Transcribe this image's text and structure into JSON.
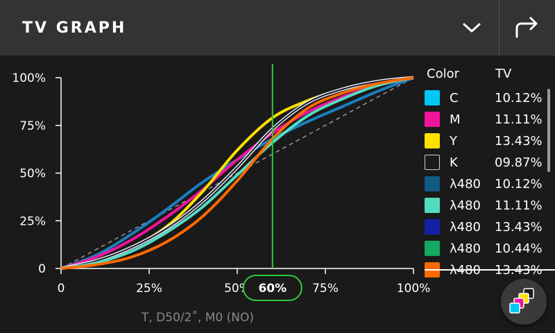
{
  "header": {
    "title": "TV GRAPH",
    "dropdown_icon": "chevron-down-icon",
    "share_icon": "share-forward-icon"
  },
  "legend": {
    "col_color": "Color",
    "col_tv": "TV",
    "items": [
      {
        "label": "C",
        "tv": "10.12%",
        "color": "#00c8f5",
        "outline": false
      },
      {
        "label": "M",
        "tv": "11.11%",
        "color": "#f0159a",
        "outline": false
      },
      {
        "label": "Y",
        "tv": "13.43%",
        "color": "#ffe100",
        "outline": false
      },
      {
        "label": "K",
        "tv": "09.87%",
        "color": "#1a1a1a",
        "outline": true
      },
      {
        "label": "λ480",
        "tv": "10.12%",
        "color": "#0f5a85",
        "outline": false
      },
      {
        "label": "λ480",
        "tv": "11.11%",
        "color": "#55dcc0",
        "outline": false
      },
      {
        "label": "λ480",
        "tv": "13.43%",
        "color": "#1420a8",
        "outline": false
      },
      {
        "label": "λ480",
        "tv": "10.44%",
        "color": "#14aa64",
        "outline": false
      },
      {
        "label": "λ480",
        "tv": "13.43%",
        "color": "#ff6a00",
        "outline": false
      }
    ]
  },
  "chart_data": {
    "type": "line",
    "x_ticks": [
      "0",
      "25%",
      "50%",
      "75%",
      "100%"
    ],
    "y_ticks": [
      "0",
      "25%",
      "50%",
      "75%",
      "100%"
    ],
    "xlim": [
      0,
      100
    ],
    "ylim": [
      0,
      100
    ],
    "grid": false,
    "reference_line": "dashed linear 0→100",
    "cursor": {
      "x": 60,
      "label": "60%",
      "color": "#2ecc40"
    },
    "series": [
      {
        "color": "#1a7fc0",
        "x": [
          0,
          10,
          20,
          30,
          40,
          50,
          60,
          70,
          80,
          90,
          100
        ],
        "y": [
          0,
          7,
          18,
          31,
          45,
          57,
          68,
          77,
          85,
          93,
          100
        ]
      },
      {
        "color": "#f0159a",
        "x": [
          0,
          10,
          20,
          30,
          40,
          50,
          60,
          70,
          80,
          90,
          100
        ],
        "y": [
          0,
          6,
          15,
          27,
          41,
          57,
          71,
          82,
          90,
          96,
          100
        ]
      },
      {
        "color": "#ffe100",
        "x": [
          0,
          10,
          20,
          30,
          40,
          50,
          60,
          70,
          80,
          90,
          100
        ],
        "y": [
          0,
          4,
          11,
          22,
          40,
          62,
          79,
          88,
          94,
          98,
          100
        ]
      },
      {
        "color": "#e8e8ff",
        "outline": true,
        "x": [
          0,
          10,
          20,
          30,
          40,
          50,
          60,
          70,
          80,
          90,
          100
        ],
        "y": [
          0,
          4,
          11,
          21,
          35,
          53,
          73,
          87,
          94,
          98,
          100
        ]
      },
      {
        "color": "#55dcc0",
        "x": [
          0,
          10,
          20,
          30,
          40,
          50,
          60,
          70,
          80,
          90,
          100
        ],
        "y": [
          0,
          3,
          9,
          19,
          32,
          49,
          66,
          80,
          89,
          96,
          100
        ]
      },
      {
        "color": "#ff6a00",
        "x": [
          0,
          10,
          20,
          30,
          40,
          50,
          60,
          70,
          80,
          90,
          100
        ],
        "y": [
          0,
          2,
          6,
          14,
          27,
          46,
          68,
          84,
          92,
          97,
          100
        ]
      }
    ]
  },
  "axis_caption": "T, D50/2˚, M0 (NO)",
  "fab_icon": "ink-drops-icon"
}
